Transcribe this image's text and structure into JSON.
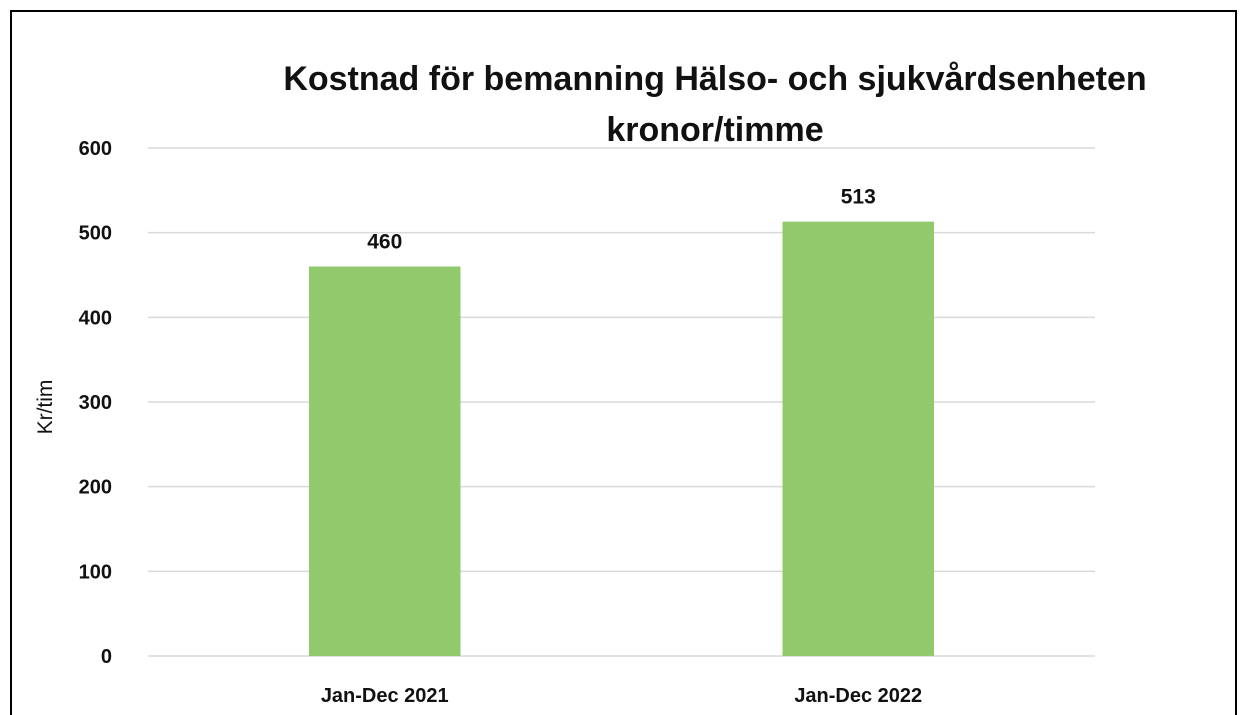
{
  "chart_data": {
    "type": "bar",
    "title_lines": [
      "Kostnad för bemanning Hälso- och sjukvårdsenheten",
      "kronor/timme"
    ],
    "categories": [
      "Jan-Dec 2021",
      "Jan-Dec 2022"
    ],
    "values": [
      460,
      513
    ],
    "data_labels": [
      "460",
      "513"
    ],
    "xlabel": "",
    "ylabel": "Kr/tim",
    "ylim": [
      0,
      600
    ],
    "yticks": [
      "0",
      "100",
      "200",
      "300",
      "400",
      "500",
      "600"
    ],
    "grid": true,
    "legend": "none",
    "bar_color": "#92c96c"
  }
}
